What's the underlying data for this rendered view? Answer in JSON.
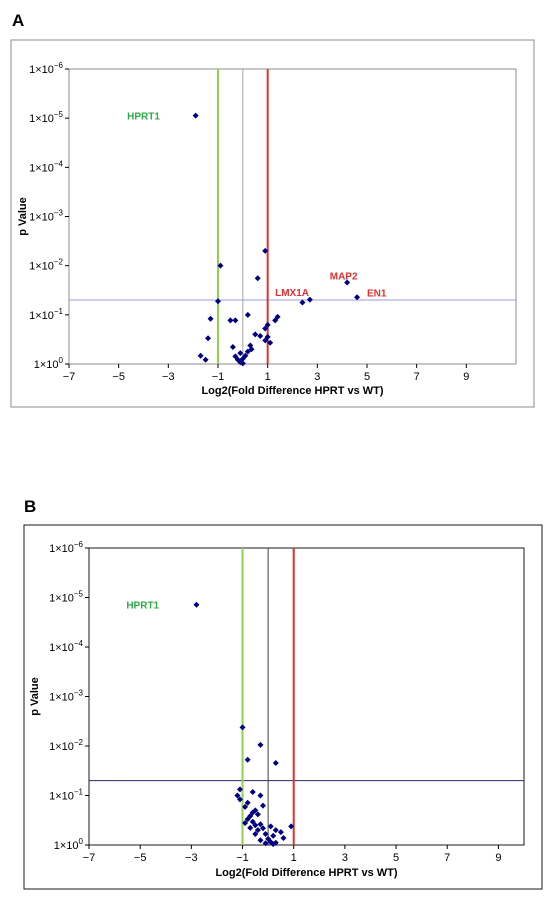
{
  "chart_data": [
    {
      "type": "scatter",
      "panel_label": "A",
      "xlabel": "Log2(Fold Difference HPRT vs WT)",
      "ylabel": "p Value",
      "xlim": [
        -7,
        11
      ],
      "x_ticks": [
        -7,
        -5,
        -3,
        -1,
        1,
        3,
        5,
        7,
        9
      ],
      "y_scale": "log-reversed",
      "y_exponent_range": [
        0,
        -6
      ],
      "y_ticks": [
        {
          "exp": -6,
          "base": "1×10",
          "sup": "−6"
        },
        {
          "exp": -5,
          "base": "1×10",
          "sup": "−5"
        },
        {
          "exp": -4,
          "base": "1×10",
          "sup": "−4"
        },
        {
          "exp": -3,
          "base": "1×10",
          "sup": "−3"
        },
        {
          "exp": -2,
          "base": "1×10",
          "sup": "−2"
        },
        {
          "exp": -1,
          "base": "1×10",
          "sup": "−1"
        },
        {
          "exp": 0,
          "base": "1×10",
          "sup": "0"
        }
      ],
      "threshold_p": 0.05,
      "vertical_lines": [
        {
          "x": -1,
          "color": "#92d050"
        },
        {
          "x": 0,
          "color": "#a6a6a6"
        },
        {
          "x": 1,
          "color": "#e03030"
        }
      ],
      "threshold_color": "#9999dd",
      "point_color": "#000080",
      "annotations": [
        {
          "text": "HPRT1",
          "x": -4.0,
          "p": 8.9e-06,
          "color": "#2eaa4a",
          "anchor": "middle"
        },
        {
          "text": "LMX1A",
          "x": 1.3,
          "p": 0.034,
          "color": "#e03030",
          "anchor": "start"
        },
        {
          "text": "MAP2",
          "x": 3.5,
          "p": 0.016,
          "color": "#e03030",
          "anchor": "start"
        },
        {
          "text": "EN1",
          "x": 5.0,
          "p": 0.035,
          "color": "#e03030",
          "anchor": "start"
        }
      ],
      "points": [
        {
          "x": -1.9,
          "p": 8.9e-06
        },
        {
          "x": -0.9,
          "p": 0.01
        },
        {
          "x": -1.0,
          "p": 0.053
        },
        {
          "x": 0.9,
          "p": 0.005
        },
        {
          "x": 0.6,
          "p": 0.018
        },
        {
          "x": 4.2,
          "p": 0.022
        },
        {
          "x": 2.7,
          "p": 0.049
        },
        {
          "x": 2.4,
          "p": 0.056
        },
        {
          "x": 4.6,
          "p": 0.044
        },
        {
          "x": 0.2,
          "p": 0.1
        },
        {
          "x": -0.3,
          "p": 0.13
        },
        {
          "x": -0.5,
          "p": 0.13
        },
        {
          "x": -1.3,
          "p": 0.12
        },
        {
          "x": 1.4,
          "p": 0.11
        },
        {
          "x": 1.3,
          "p": 0.13
        },
        {
          "x": 1.0,
          "p": 0.16
        },
        {
          "x": 0.9,
          "p": 0.19
        },
        {
          "x": 0.5,
          "p": 0.25
        },
        {
          "x": 0.7,
          "p": 0.27
        },
        {
          "x": 1.0,
          "p": 0.28
        },
        {
          "x": 0.9,
          "p": 0.33
        },
        {
          "x": 1.1,
          "p": 0.37
        },
        {
          "x": -1.4,
          "p": 0.3
        },
        {
          "x": 0.3,
          "p": 0.42
        },
        {
          "x": 0.35,
          "p": 0.5
        },
        {
          "x": 0.2,
          "p": 0.56
        },
        {
          "x": -0.4,
          "p": 0.45
        },
        {
          "x": -0.1,
          "p": 0.6
        },
        {
          "x": 0.1,
          "p": 0.68
        },
        {
          "x": 0.0,
          "p": 0.78
        },
        {
          "x": -0.3,
          "p": 0.7
        },
        {
          "x": -0.2,
          "p": 0.82
        },
        {
          "x": -0.1,
          "p": 0.92
        },
        {
          "x": 0.0,
          "p": 0.97
        },
        {
          "x": -1.7,
          "p": 0.68
        },
        {
          "x": -1.5,
          "p": 0.82
        }
      ]
    },
    {
      "type": "scatter",
      "panel_label": "B",
      "xlabel": "Log2(Fold Difference HPRT vs WT)",
      "ylabel": "p Value",
      "xlim": [
        -7,
        10
      ],
      "x_ticks": [
        -7,
        -5,
        -3,
        -1,
        1,
        3,
        5,
        7,
        9
      ],
      "y_scale": "log-reversed",
      "y_exponent_range": [
        0,
        -6
      ],
      "y_ticks": [
        {
          "exp": -6,
          "base": "1×10",
          "sup": "−6"
        },
        {
          "exp": -5,
          "base": "1×10",
          "sup": "−5"
        },
        {
          "exp": -4,
          "base": "1×10",
          "sup": "−4"
        },
        {
          "exp": -3,
          "base": "1×10",
          "sup": "−3"
        },
        {
          "exp": -2,
          "base": "1×10",
          "sup": "−2"
        },
        {
          "exp": -1,
          "base": "1×10",
          "sup": "−1"
        },
        {
          "exp": 0,
          "base": "1×10",
          "sup": "0"
        }
      ],
      "threshold_p": 0.05,
      "vertical_lines": [
        {
          "x": -1,
          "color": "#92d050"
        },
        {
          "x": 0,
          "color": "#404040"
        },
        {
          "x": 1,
          "color": "#e03030"
        }
      ],
      "threshold_color": "#2a2a6a",
      "point_color": "#000080",
      "annotations": [
        {
          "text": "HPRT1",
          "x": -4.9,
          "p": 1.4e-05,
          "color": "#2eaa4a",
          "anchor": "middle"
        }
      ],
      "points": [
        {
          "x": -2.8,
          "p": 1.4e-05
        },
        {
          "x": -1.0,
          "p": 0.0042
        },
        {
          "x": -0.3,
          "p": 0.0095
        },
        {
          "x": -0.8,
          "p": 0.019
        },
        {
          "x": 0.3,
          "p": 0.022
        },
        {
          "x": -1.1,
          "p": 0.075
        },
        {
          "x": -0.6,
          "p": 0.085
        },
        {
          "x": -0.3,
          "p": 0.1
        },
        {
          "x": -1.2,
          "p": 0.1
        },
        {
          "x": -1.1,
          "p": 0.12
        },
        {
          "x": -0.8,
          "p": 0.14
        },
        {
          "x": -0.2,
          "p": 0.16
        },
        {
          "x": -0.9,
          "p": 0.17
        },
        {
          "x": -0.5,
          "p": 0.2
        },
        {
          "x": -0.6,
          "p": 0.22
        },
        {
          "x": -0.4,
          "p": 0.24
        },
        {
          "x": -0.7,
          "p": 0.26
        },
        {
          "x": -0.8,
          "p": 0.3
        },
        {
          "x": -0.6,
          "p": 0.34
        },
        {
          "x": -0.3,
          "p": 0.38
        },
        {
          "x": -0.5,
          "p": 0.4
        },
        {
          "x": -0.9,
          "p": 0.36
        },
        {
          "x": -0.7,
          "p": 0.45
        },
        {
          "x": -0.4,
          "p": 0.5
        },
        {
          "x": -0.2,
          "p": 0.46
        },
        {
          "x": 0.1,
          "p": 0.42
        },
        {
          "x": 0.3,
          "p": 0.5
        },
        {
          "x": 0.5,
          "p": 0.55
        },
        {
          "x": 0.9,
          "p": 0.42
        },
        {
          "x": -0.5,
          "p": 0.6
        },
        {
          "x": -0.1,
          "p": 0.6
        },
        {
          "x": 0.2,
          "p": 0.65
        },
        {
          "x": 0.6,
          "p": 0.72
        },
        {
          "x": 0.0,
          "p": 0.75
        },
        {
          "x": -0.3,
          "p": 0.8
        },
        {
          "x": 0.1,
          "p": 0.87
        },
        {
          "x": 0.3,
          "p": 0.9
        },
        {
          "x": -0.1,
          "p": 0.92
        },
        {
          "x": 0.2,
          "p": 0.96
        }
      ]
    }
  ]
}
